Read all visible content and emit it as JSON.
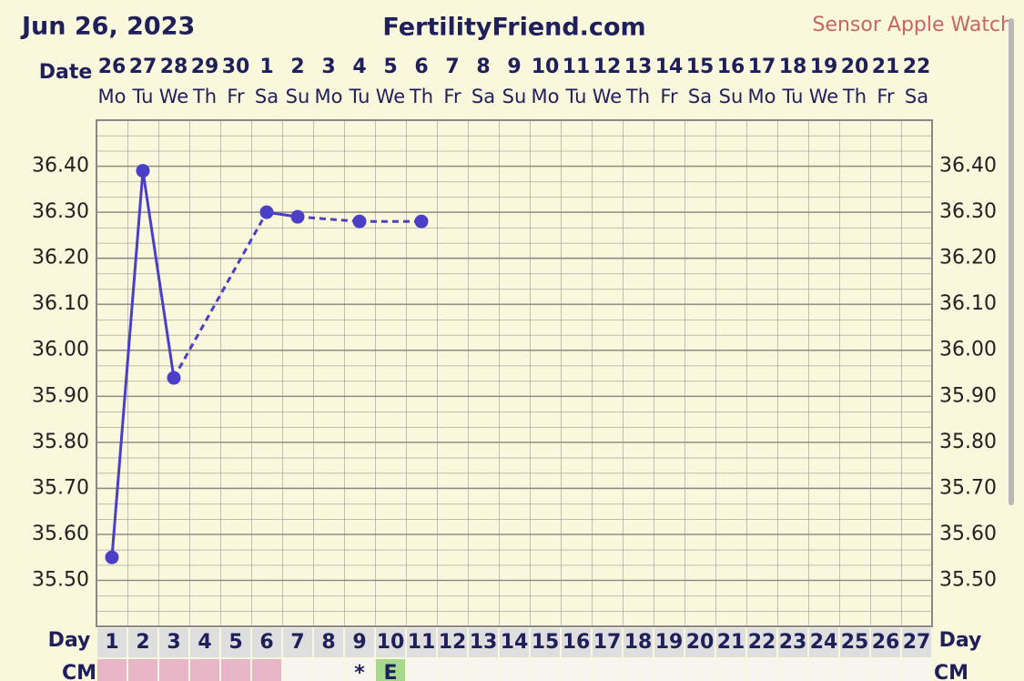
{
  "chart_data": {
    "type": "line",
    "title": "FertilityFriend.com",
    "date": "Jun 26, 2023",
    "source": "Sensor Apple Watch",
    "source_color": "#c86464",
    "date_label": "Date",
    "day_label": "Day",
    "cm_label": "CM",
    "dates": [
      "26",
      "27",
      "28",
      "29",
      "30",
      "1",
      "2",
      "3",
      "4",
      "5",
      "6",
      "7",
      "8",
      "9",
      "10",
      "11",
      "12",
      "13",
      "14",
      "15",
      "16",
      "17",
      "18",
      "19",
      "20",
      "21",
      "22"
    ],
    "weekdays": [
      "Mo",
      "Tu",
      "We",
      "Th",
      "Fr",
      "Sa",
      "Su",
      "Mo",
      "Tu",
      "We",
      "Th",
      "Fr",
      "Sa",
      "Su",
      "Mo",
      "Tu",
      "We",
      "Th",
      "Fr",
      "Sa",
      "Su",
      "Mo",
      "Tu",
      "We",
      "Th",
      "Fr",
      "Sa"
    ],
    "days": [
      1,
      2,
      3,
      4,
      5,
      6,
      7,
      8,
      9,
      10,
      11,
      12,
      13,
      14,
      15,
      16,
      17,
      18,
      19,
      20,
      21,
      22,
      23,
      24,
      25,
      26,
      27
    ],
    "x": [
      1,
      2,
      3,
      6,
      7,
      9,
      11
    ],
    "values": [
      35.55,
      36.39,
      35.94,
      36.3,
      36.29,
      36.28,
      36.28
    ],
    "color": "#4a3fc6",
    "xlim": [
      0.5,
      27.5
    ],
    "ylim": [
      35.4,
      36.5
    ],
    "yticks": [
      {
        "value": 35.5,
        "label": "35.50"
      },
      {
        "value": 35.6,
        "label": "35.60"
      },
      {
        "value": 35.7,
        "label": "35.70"
      },
      {
        "value": 35.8,
        "label": "35.80"
      },
      {
        "value": 35.9,
        "label": "35.90"
      },
      {
        "value": 36.0,
        "label": "36.00"
      },
      {
        "value": 36.1,
        "label": "36.10"
      },
      {
        "value": 36.2,
        "label": "36.20"
      },
      {
        "value": 36.3,
        "label": "36.30"
      },
      {
        "value": 36.4,
        "label": "36.40"
      }
    ],
    "grid": true,
    "cm_pink_days": [
      1,
      2,
      3,
      4,
      5,
      6
    ],
    "cm_marks": [
      {
        "day": 9,
        "text": "*"
      },
      {
        "day": 10,
        "text": "E",
        "color": "#a6d98c"
      }
    ]
  }
}
